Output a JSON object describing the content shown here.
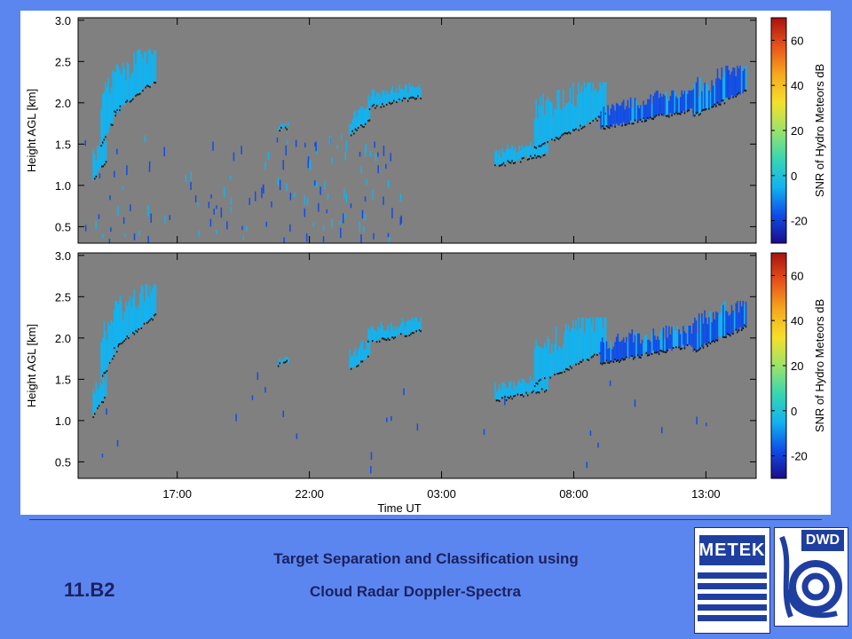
{
  "slide": {
    "number": "11.B2",
    "title_line1": "Target Separation and Classification using",
    "title_line2": "Cloud Radar Doppler-Spectra"
  },
  "logos": {
    "metek": "METEK",
    "dwd": "DWD"
  },
  "colors": {
    "background": "#5c86ef",
    "plot_background": "#808080",
    "title_text": "#1b2160",
    "colormap": [
      "#1a0c8a",
      "#0f4de8",
      "#12b3f0",
      "#38d6b0",
      "#9be36a",
      "#f5e02a",
      "#f5a81e",
      "#e8521a",
      "#a8120e"
    ]
  },
  "chart_data": [
    {
      "type": "heatmap",
      "panel": "top",
      "xlabel": "",
      "ylabel": "Height AGL [km]",
      "yticks": [
        "0.5",
        "1.0",
        "1.5",
        "2.0",
        "2.5",
        "3.0"
      ],
      "ylim": [
        0.3,
        3.03
      ],
      "xticks": [],
      "x_tick_positions_h": [
        17,
        22,
        27,
        32,
        37
      ],
      "xlim_hours": [
        13.25,
        38.9
      ],
      "colorbar": {
        "label": "SNR of Hydro Meteors dB",
        "ticks": [
          "60",
          "40",
          "20",
          "0",
          "-20"
        ],
        "tick_values": [
          60,
          40,
          20,
          0,
          -20
        ],
        "range": [
          -30,
          70
        ]
      },
      "cloud_features": [
        {
          "t0": 13.8,
          "t1": 14.3,
          "base_km": 1.05,
          "top_km": 1.55,
          "snr": -5
        },
        {
          "t0": 14.1,
          "t1": 14.9,
          "base_km": 1.5,
          "top_km": 2.4,
          "snr": -8
        },
        {
          "t0": 14.6,
          "t1": 16.2,
          "base_km": 1.9,
          "top_km": 2.6,
          "snr": -10
        },
        {
          "t0": 20.8,
          "t1": 21.2,
          "base_km": 1.68,
          "top_km": 1.75,
          "snr": -10
        },
        {
          "t0": 23.5,
          "t1": 24.3,
          "base_km": 1.62,
          "top_km": 1.95,
          "snr": -8
        },
        {
          "t0": 24.2,
          "t1": 26.2,
          "base_km": 1.95,
          "top_km": 2.2,
          "snr": -10
        },
        {
          "t0": 29.0,
          "t1": 31.0,
          "base_km": 1.25,
          "top_km": 1.5,
          "snr": -5
        },
        {
          "t0": 30.5,
          "t1": 33.2,
          "base_km": 1.45,
          "top_km": 2.2,
          "snr": -3
        },
        {
          "t0": 33.0,
          "t1": 36.5,
          "base_km": 1.7,
          "top_km": 2.1,
          "snr": -20
        },
        {
          "t0": 36.5,
          "t1": 38.5,
          "base_km": 1.85,
          "top_km": 2.4,
          "snr": -20
        }
      ],
      "noise_clutter": true
    },
    {
      "type": "heatmap",
      "panel": "bottom",
      "xlabel": "Time UT",
      "ylabel": "Height AGL [km]",
      "yticks": [
        "0.5",
        "1.0",
        "1.5",
        "2.0",
        "2.5",
        "3.0"
      ],
      "ylim": [
        0.3,
        3.03
      ],
      "xticks": [
        "17:00",
        "22:00",
        "03:00",
        "08:00",
        "13:00"
      ],
      "x_tick_positions_h": [
        17,
        22,
        27,
        32,
        37
      ],
      "xlim_hours": [
        13.25,
        38.9
      ],
      "colorbar": {
        "label": "SNR of Hydro Meteors dB",
        "ticks": [
          "60",
          "40",
          "20",
          "0",
          "-20"
        ],
        "tick_values": [
          60,
          40,
          20,
          0,
          -20
        ],
        "range": [
          -30,
          70
        ]
      },
      "cloud_features": [
        {
          "t0": 13.8,
          "t1": 14.3,
          "base_km": 1.05,
          "top_km": 1.55,
          "snr": -5
        },
        {
          "t0": 14.1,
          "t1": 14.9,
          "base_km": 1.5,
          "top_km": 2.4,
          "snr": -8
        },
        {
          "t0": 14.6,
          "t1": 16.2,
          "base_km": 1.9,
          "top_km": 2.6,
          "snr": -10
        },
        {
          "t0": 20.8,
          "t1": 21.2,
          "base_km": 1.68,
          "top_km": 1.75,
          "snr": -10
        },
        {
          "t0": 23.5,
          "t1": 24.3,
          "base_km": 1.62,
          "top_km": 1.95,
          "snr": -8
        },
        {
          "t0": 24.2,
          "t1": 26.2,
          "base_km": 1.95,
          "top_km": 2.2,
          "snr": -10
        },
        {
          "t0": 29.0,
          "t1": 31.0,
          "base_km": 1.25,
          "top_km": 1.5,
          "snr": -5
        },
        {
          "t0": 30.5,
          "t1": 33.2,
          "base_km": 1.45,
          "top_km": 2.2,
          "snr": -3
        },
        {
          "t0": 33.0,
          "t1": 36.5,
          "base_km": 1.7,
          "top_km": 2.1,
          "snr": -20
        },
        {
          "t0": 36.5,
          "t1": 38.5,
          "base_km": 1.85,
          "top_km": 2.4,
          "snr": -20
        }
      ],
      "noise_clutter": false
    }
  ]
}
